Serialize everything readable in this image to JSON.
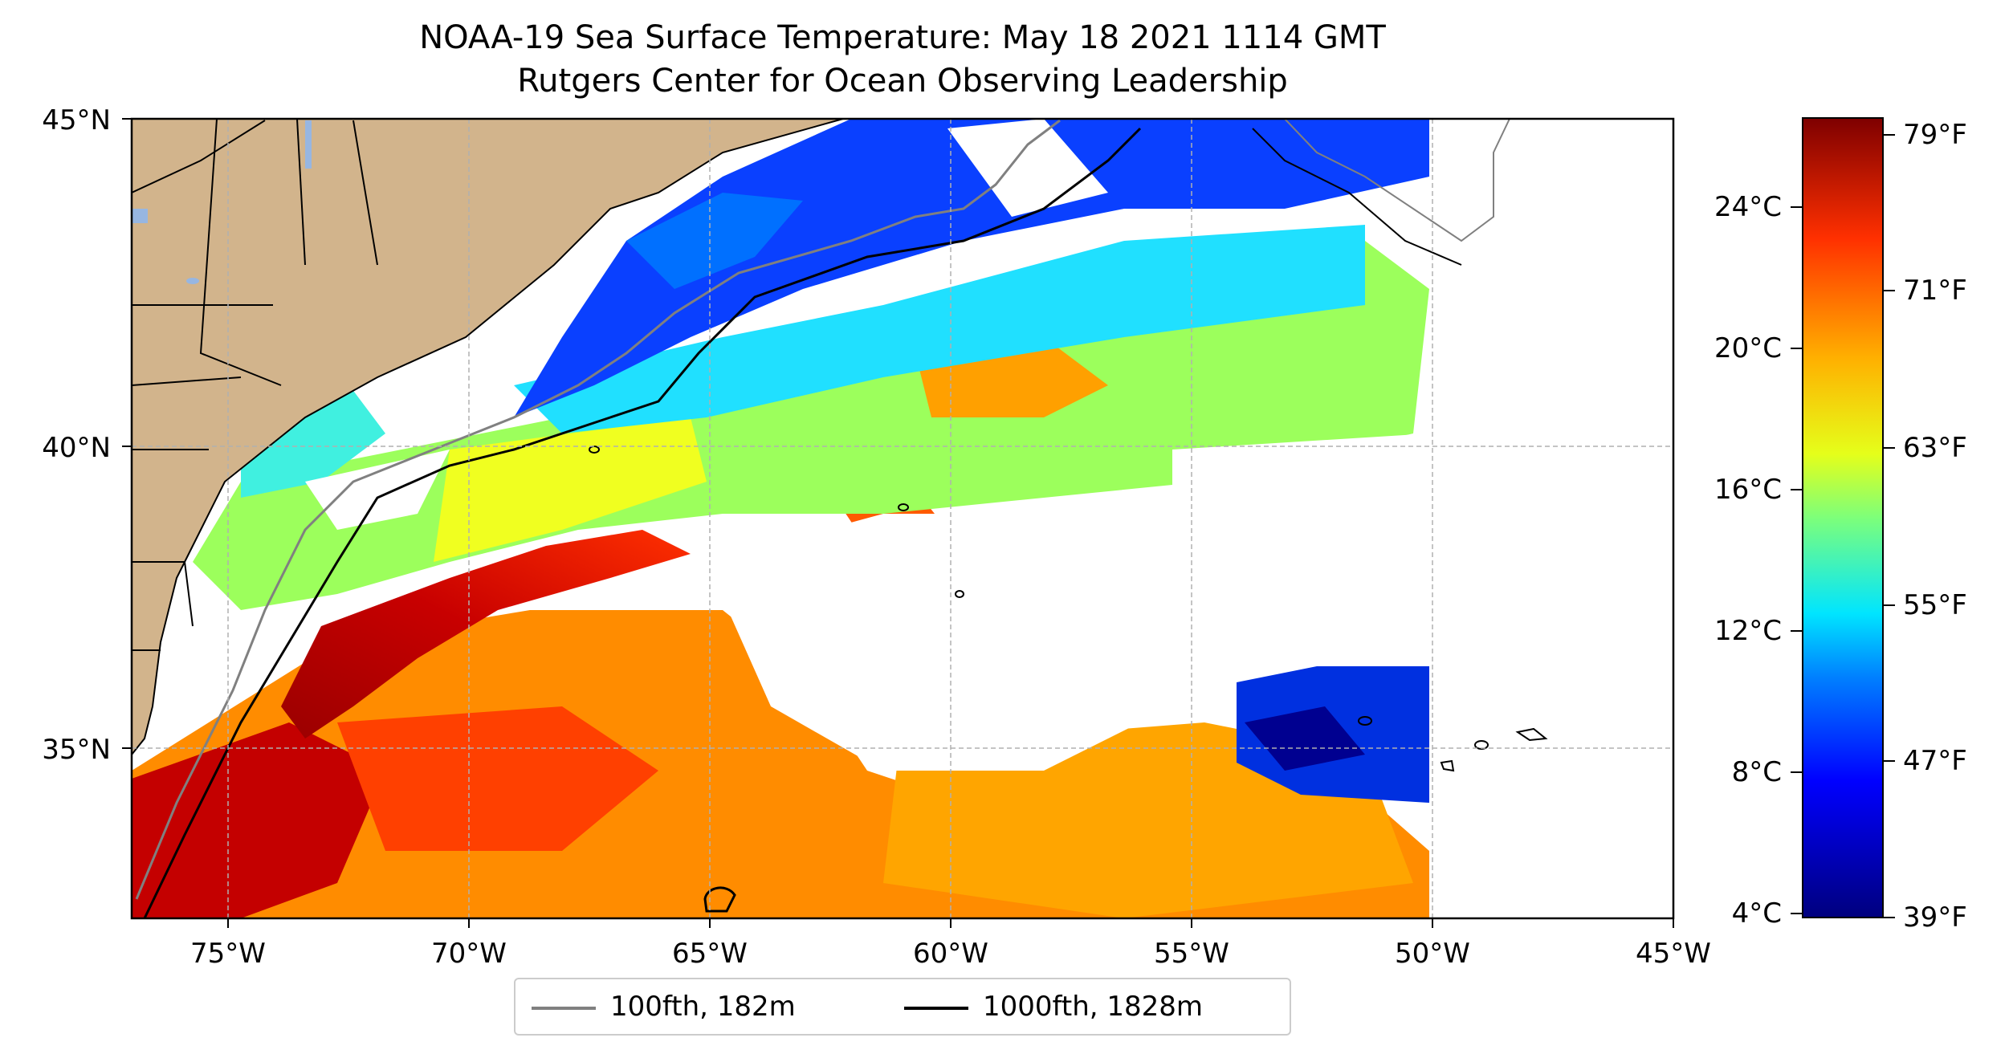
{
  "title": {
    "line1": "NOAA-19 Sea Surface Temperature: May 18 2021 1114 GMT",
    "line2": "Rutgers Center for Ocean Observing Leadership"
  },
  "map": {
    "lat_range": [
      32.3,
      45
    ],
    "lon_range": [
      -77,
      -45
    ],
    "lat_labels": [
      "45°N",
      "40°N",
      "35°N"
    ],
    "lon_labels": [
      "75°W",
      "70°W",
      "65°W",
      "60°W",
      "55°W",
      "50°W",
      "45°W"
    ],
    "gridlines": true,
    "land_color": "#d2b48c",
    "lake_color": "#97b6e1",
    "missing_data_color": "#ffffff"
  },
  "legend": {
    "placement": "bottom-center",
    "items": [
      {
        "label": "100fth, 182m",
        "color": "#808080"
      },
      {
        "label": "1000fth, 1828m",
        "color": "#000000"
      }
    ]
  },
  "colorbar": {
    "colormap": "jet",
    "celsius_labels": [
      "24°C",
      "20°C",
      "16°C",
      "12°C",
      "8°C",
      "4°C"
    ],
    "fahrenheit_labels": [
      "79°F",
      "71°F",
      "63°F",
      "55°F",
      "47°F",
      "39°F"
    ]
  }
}
